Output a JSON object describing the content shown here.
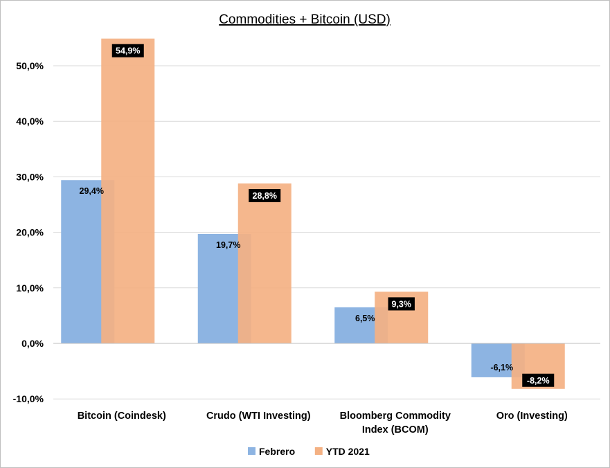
{
  "chart_data": {
    "type": "bar",
    "title": "Commodities + Bitcoin (USD)",
    "categories": [
      [
        "Bitcoin (Coindesk)"
      ],
      [
        "Crudo (WTI Investing)"
      ],
      [
        "Bloomberg Commodity",
        "Index (BCOM)"
      ],
      [
        "Oro (Investing)"
      ]
    ],
    "series": [
      {
        "name": "Febrero",
        "color": "#8DB4E2",
        "values": [
          29.4,
          19.7,
          6.5,
          -6.1
        ],
        "labels": [
          "29,4%",
          "19,7%",
          "6,5%",
          "-6,1%"
        ]
      },
      {
        "name": "YTD 2021",
        "color": "#F4B183",
        "values": [
          54.9,
          28.8,
          9.3,
          -8.2
        ],
        "labels": [
          "54,9%",
          "28,8%",
          "9,3%",
          "-8,2%"
        ]
      }
    ],
    "ylim": [
      -10,
      55
    ],
    "yticks": [
      50,
      40,
      30,
      20,
      10,
      0,
      -10
    ],
    "ytick_labels": [
      "50,0%",
      "40,0%",
      "30,0%",
      "20,0%",
      "10,0%",
      "0,0%",
      "-10,0%"
    ],
    "grid": true,
    "legend_position": "bottom"
  }
}
